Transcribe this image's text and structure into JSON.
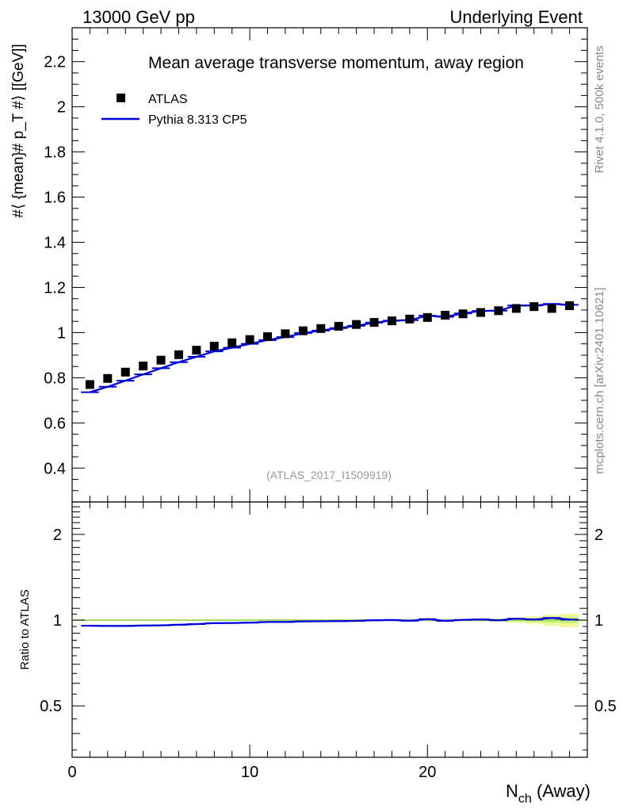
{
  "header": {
    "left": "13000 GeV pp",
    "right": "Underlying Event"
  },
  "side_labels": {
    "rivet": "Rivet 4.1.0,  500k events",
    "mcplots": "mcplots.cern.ch [arXiv:2401.10621]"
  },
  "colors": {
    "data": "#000000",
    "mc": "#0000dd",
    "band_outer": "#f0f89a",
    "band_inner": "#c8f078",
    "ref_line": "#90d050",
    "watermark": "#999999",
    "side_text": "#888888"
  },
  "chart_data": {
    "type": "line",
    "title": "Mean average transverse momentum, away region",
    "analysis_id": "(ATLAS_2017_I1509919)",
    "xlabel": "N_ch (Away)",
    "xlabel_main": "N",
    "xlabel_sub": "ch",
    "xlabel_rest": " (Away)",
    "ylabel": "#⟨ {mean}# p_T #⟩ [[GeV]]",
    "ratio_ylabel": "Ratio to ATLAS",
    "xlim": [
      0,
      29
    ],
    "ylim": [
      0.25,
      2.35
    ],
    "ratio_ylim": [
      0.33,
      2.6
    ],
    "x_ticks": [
      0,
      10,
      20
    ],
    "y_ticks": [
      0.4,
      0.6,
      0.8,
      1,
      1.2,
      1.4,
      1.6,
      1.8,
      2,
      2.2
    ],
    "y_tick_labels": [
      "0.4",
      "0.6",
      "0.8",
      "1",
      "1.2",
      "1.4",
      "1.6",
      "1.8",
      "2",
      "2.2"
    ],
    "ratio_ticks": [
      0.5,
      1,
      2
    ],
    "ratio_tick_labels": [
      "0.5",
      "1",
      "2"
    ],
    "legend": [
      {
        "label": "ATLAS",
        "style": "marker"
      },
      {
        "label": "Pythia 8.313 CP5",
        "style": "line"
      }
    ],
    "x": [
      1,
      2,
      3,
      4,
      5,
      6,
      7,
      8,
      9,
      10,
      11,
      12,
      13,
      14,
      15,
      16,
      17,
      18,
      19,
      20,
      21,
      22,
      23,
      24,
      25,
      26,
      27,
      28
    ],
    "series": [
      {
        "name": "ATLAS",
        "values": [
          0.77,
          0.797,
          0.825,
          0.852,
          0.878,
          0.902,
          0.922,
          0.94,
          0.955,
          0.969,
          0.982,
          0.995,
          1.008,
          1.018,
          1.028,
          1.036,
          1.045,
          1.052,
          1.06,
          1.067,
          1.077,
          1.083,
          1.089,
          1.097,
          1.107,
          1.115,
          1.107,
          1.119
        ]
      },
      {
        "name": "Pythia 8.313 CP5",
        "values": [
          0.736,
          0.76,
          0.787,
          0.815,
          0.842,
          0.869,
          0.893,
          0.917,
          0.933,
          0.95,
          0.967,
          0.98,
          0.998,
          1.009,
          1.02,
          1.03,
          1.044,
          1.053,
          1.055,
          1.075,
          1.07,
          1.085,
          1.096,
          1.097,
          1.12,
          1.12,
          1.127,
          1.123
        ]
      }
    ],
    "ratio": {
      "name": "Pythia 8.313 CP5 / ATLAS",
      "values": [
        0.956,
        0.954,
        0.954,
        0.957,
        0.959,
        0.963,
        0.969,
        0.976,
        0.977,
        0.98,
        0.985,
        0.985,
        0.99,
        0.991,
        0.992,
        0.994,
        0.999,
        1.001,
        0.995,
        1.008,
        0.994,
        1.002,
        1.006,
        0.999,
        1.012,
        1.005,
        1.018,
        1.004
      ],
      "band_inner": [
        0.004,
        0.004,
        0.004,
        0.004,
        0.004,
        0.004,
        0.004,
        0.004,
        0.004,
        0.004,
        0.004,
        0.004,
        0.004,
        0.004,
        0.004,
        0.004,
        0.004,
        0.004,
        0.005,
        0.005,
        0.005,
        0.005,
        0.006,
        0.007,
        0.01,
        0.015,
        0.02,
        0.025
      ],
      "band_outer": [
        0.006,
        0.006,
        0.006,
        0.006,
        0.006,
        0.006,
        0.006,
        0.006,
        0.006,
        0.006,
        0.006,
        0.006,
        0.006,
        0.006,
        0.007,
        0.007,
        0.007,
        0.007,
        0.008,
        0.008,
        0.009,
        0.01,
        0.011,
        0.013,
        0.02,
        0.03,
        0.045,
        0.055
      ]
    }
  }
}
